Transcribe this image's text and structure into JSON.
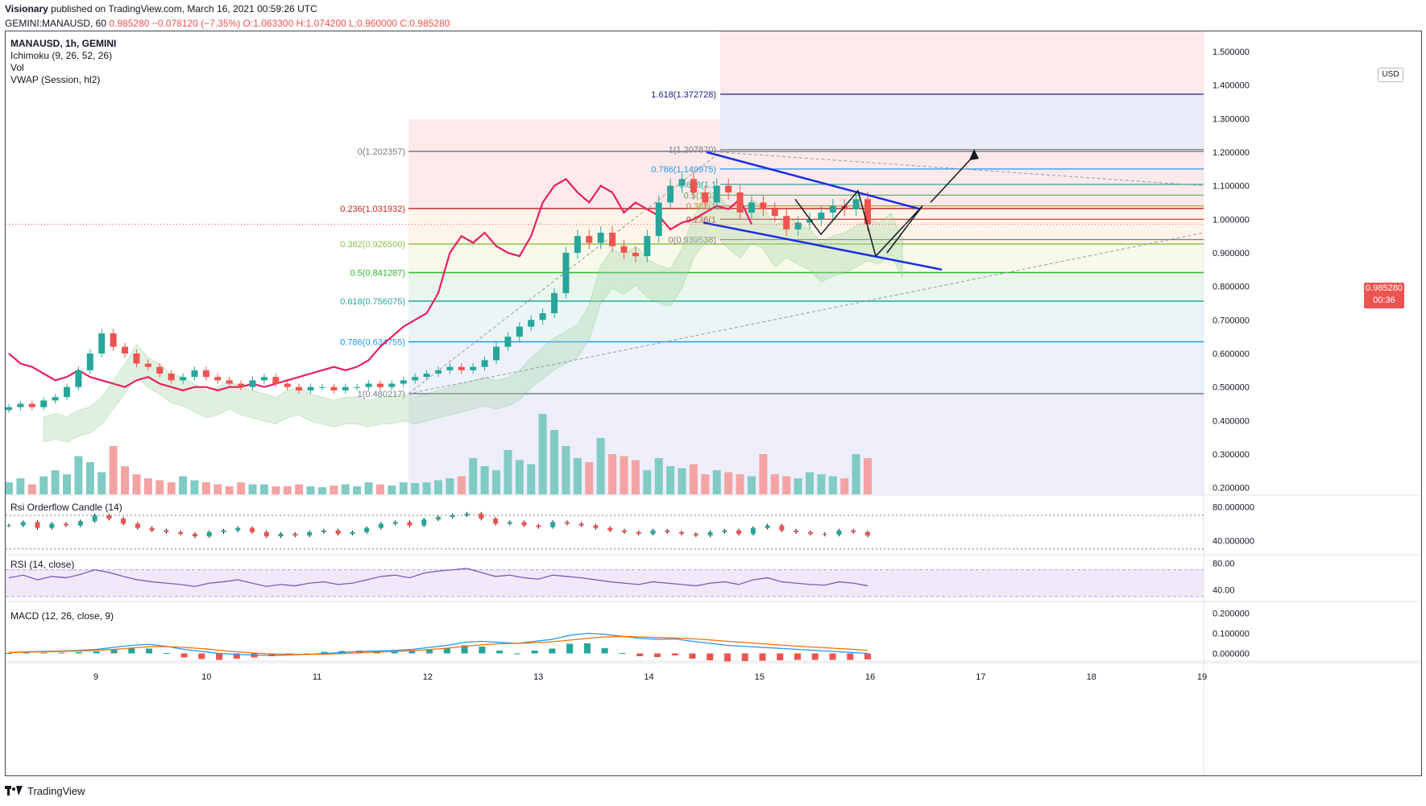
{
  "header": {
    "publisher": "Visionary",
    "published_text": "published on TradingView.com, March 16, 2021 00:59:26 UTC",
    "symbol": "GEMINI:MANAUSD, 60",
    "last": "0.985280",
    "change": "−0.078120 (−7.35%)",
    "o": "O:1.063300",
    "h": "H:1.074200",
    "l": "L:0.960000",
    "c": "C:0.985280"
  },
  "legend": {
    "title": "MANAUSD, 1h, GEMINI",
    "ichimoku": "Ichimoku (9, 26, 52, 26)",
    "vol": "Vol",
    "vwap": "VWAP (Session, hl2)",
    "rsi_orderflow": "Rsi Orderflow Candle (14)",
    "rsi": "RSI (14, close)",
    "macd": "MACD (12, 26, close, 9)"
  },
  "price_axis": {
    "currency": "USD",
    "current_price": "0.985280",
    "countdown": "00:36"
  },
  "footer": {
    "brand": "TradingView"
  },
  "colors": {
    "up": "#26a69a",
    "down": "#ef5350",
    "channel": "#1a2ee6",
    "rsi_line": "#7e57c2",
    "macd_line": "#2196f3",
    "signal_line": "#ff6d00",
    "lagging_span": "#e91e63"
  },
  "chart_data": [
    {
      "type": "candlestick",
      "pane": "price",
      "title": "MANAUSD, 1h, GEMINI",
      "x_ticks": [
        "9",
        "10",
        "11",
        "12",
        "13",
        "14",
        "15",
        "16",
        "17",
        "18",
        "19"
      ],
      "y_ticks": [
        "1.500000",
        "1.400000",
        "1.300000",
        "1.200000",
        "1.100000",
        "1.000000",
        "0.900000",
        "0.800000",
        "0.700000",
        "0.600000",
        "0.500000",
        "0.400000",
        "0.300000",
        "0.200000"
      ],
      "ylim": [
        0.18,
        1.56
      ],
      "fib_retracement_1": [
        {
          "label": "0(1.202357)",
          "value": 1.202357
        },
        {
          "label": "0.236(1.031932)",
          "value": 1.031932
        },
        {
          "label": "0.382(0.926500)",
          "value": 0.9265
        },
        {
          "label": "0.5(0.841287)",
          "value": 0.841287
        },
        {
          "label": "0.618(0.756075)",
          "value": 0.756075
        },
        {
          "label": "0.786(0.634755)",
          "value": 0.634755
        },
        {
          "label": "1(0.480217)",
          "value": 0.480217
        }
      ],
      "fib_retracement_2": [
        {
          "label": "1.618(1.372728)",
          "value": 1.372728
        },
        {
          "label": "1(1.207870)",
          "value": 1.20787
        },
        {
          "label": "0.786(1.149975)",
          "value": 1.149975
        },
        {
          "label": "0.618(1.1",
          "value": 1.104
        },
        {
          "label": "0.5(1.07",
          "value": 1.072
        },
        {
          "label": "0.382(1",
          "value": 1.04
        },
        {
          "label": "0.236(1",
          "value": 1.0
        },
        {
          "label": "0(0.939538)",
          "value": 0.939538
        }
      ],
      "closes": [
        0.44,
        0.45,
        0.44,
        0.46,
        0.47,
        0.5,
        0.55,
        0.6,
        0.66,
        0.62,
        0.6,
        0.57,
        0.56,
        0.54,
        0.52,
        0.53,
        0.55,
        0.53,
        0.52,
        0.51,
        0.5,
        0.52,
        0.53,
        0.51,
        0.5,
        0.49,
        0.5,
        0.5,
        0.49,
        0.5,
        0.5,
        0.51,
        0.5,
        0.51,
        0.52,
        0.53,
        0.54,
        0.55,
        0.56,
        0.55,
        0.56,
        0.58,
        0.62,
        0.65,
        0.68,
        0.7,
        0.72,
        0.78,
        0.9,
        0.95,
        0.93,
        0.96,
        0.92,
        0.9,
        0.89,
        0.95,
        1.05,
        1.1,
        1.12,
        1.08,
        1.05,
        1.1,
        1.08,
        1.02,
        1.05,
        1.03,
        1.01,
        0.97,
        0.99,
        1.0,
        1.02,
        1.04,
        1.03,
        1.06,
        0.985
      ],
      "volume": [
        30,
        40,
        25,
        45,
        60,
        50,
        95,
        80,
        55,
        120,
        70,
        50,
        40,
        35,
        30,
        45,
        35,
        30,
        25,
        20,
        30,
        25,
        25,
        20,
        20,
        25,
        20,
        18,
        22,
        25,
        20,
        30,
        25,
        22,
        30,
        28,
        30,
        35,
        40,
        45,
        90,
        70,
        60,
        110,
        85,
        75,
        200,
        160,
        120,
        90,
        80,
        140,
        100,
        95,
        85,
        60,
        90,
        70,
        65,
        75,
        50,
        60,
        55,
        50,
        45,
        100,
        50,
        45,
        40,
        55,
        50,
        45,
        40,
        100,
        90
      ],
      "annotations": [
        "descending channel",
        "projected path arrows"
      ]
    },
    {
      "type": "line",
      "pane": "rsi_orderflow",
      "title": "Rsi Orderflow Candle (14)",
      "y_ticks": [
        "80.000000",
        "40.000000"
      ],
      "ylim": [
        25,
        92
      ]
    },
    {
      "type": "line",
      "pane": "rsi",
      "title": "RSI (14, close)",
      "y_ticks": [
        "80.00",
        "40.00"
      ],
      "ylim": [
        25,
        90
      ],
      "values": [
        58,
        62,
        55,
        60,
        58,
        63,
        70,
        66,
        60,
        55,
        52,
        50,
        48,
        45,
        50,
        52,
        55,
        50,
        45,
        48,
        46,
        50,
        52,
        48,
        50,
        55,
        60,
        62,
        58,
        65,
        68,
        70,
        72,
        66,
        60,
        62,
        58,
        56,
        62,
        60,
        58,
        55,
        52,
        50,
        48,
        52,
        50,
        48,
        46,
        50,
        52,
        48,
        55,
        58,
        52,
        50,
        48,
        47,
        52,
        50,
        46
      ],
      "bands": [
        70,
        30
      ]
    },
    {
      "type": "line",
      "pane": "macd",
      "title": "MACD (12, 26, close, 9)",
      "y_ticks": [
        "0.200000",
        "0.100000",
        "0.000000"
      ],
      "ylim": [
        -0.03,
        0.25
      ],
      "macd": [
        0.005,
        0.008,
        0.01,
        0.012,
        0.015,
        0.02,
        0.03,
        0.04,
        0.045,
        0.035,
        0.02,
        0.01,
        0.0,
        -0.005,
        -0.008,
        -0.01,
        -0.008,
        -0.005,
        0.0,
        0.005,
        0.01,
        0.012,
        0.015,
        0.02,
        0.03,
        0.04,
        0.055,
        0.06,
        0.055,
        0.05,
        0.06,
        0.07,
        0.09,
        0.1,
        0.095,
        0.085,
        0.075,
        0.07,
        0.072,
        0.06,
        0.05,
        0.04,
        0.035,
        0.03,
        0.025,
        0.02,
        0.015,
        0.01,
        0.005,
        0.0
      ],
      "signal": [
        0.004,
        0.006,
        0.008,
        0.01,
        0.012,
        0.015,
        0.02,
        0.027,
        0.033,
        0.034,
        0.03,
        0.024,
        0.016,
        0.008,
        0.002,
        -0.003,
        -0.005,
        -0.005,
        -0.004,
        -0.001,
        0.003,
        0.007,
        0.01,
        0.014,
        0.019,
        0.026,
        0.035,
        0.043,
        0.048,
        0.05,
        0.053,
        0.058,
        0.066,
        0.075,
        0.082,
        0.084,
        0.082,
        0.079,
        0.077,
        0.073,
        0.067,
        0.06,
        0.054,
        0.048,
        0.042,
        0.036,
        0.031,
        0.026,
        0.021,
        0.015
      ]
    }
  ]
}
